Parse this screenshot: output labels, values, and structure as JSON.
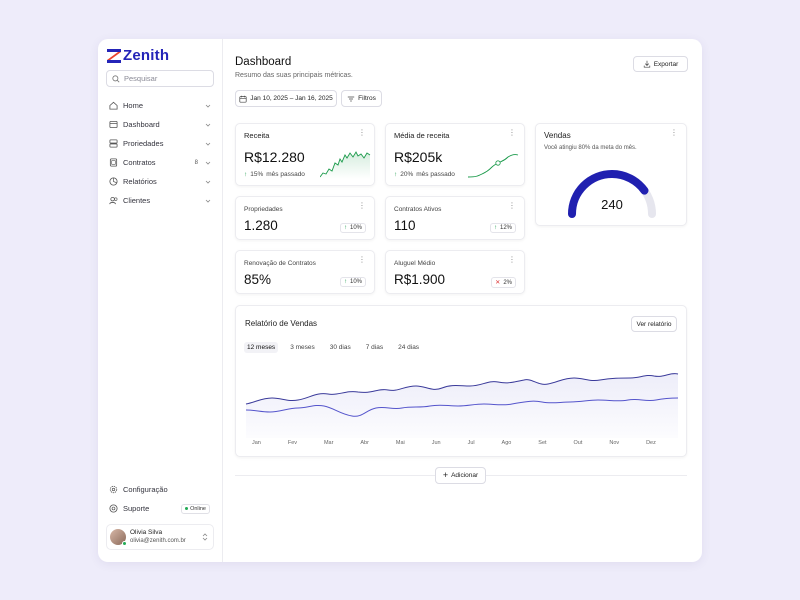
{
  "brand": {
    "name": "Zenith",
    "color": "#2424b8"
  },
  "search": {
    "placeholder": "Pesquisar"
  },
  "nav": [
    {
      "label": "Home",
      "icon": "home-icon",
      "count": ""
    },
    {
      "label": "Dashboard",
      "icon": "dashboard-icon",
      "count": ""
    },
    {
      "label": "Proriedades",
      "icon": "properties-icon",
      "count": ""
    },
    {
      "label": "Contratos",
      "icon": "contracts-icon",
      "count": "8"
    },
    {
      "label": "Relatórios",
      "icon": "reports-icon",
      "count": ""
    },
    {
      "label": "Clientes",
      "icon": "clients-icon",
      "count": ""
    }
  ],
  "bottom_nav": {
    "settings_label": "Configuração",
    "support_label": "Suporte",
    "online_label": "Online"
  },
  "user": {
    "name": "Olivia Silva",
    "email": "olivia@zenith.com.br"
  },
  "header": {
    "title": "Dashboard",
    "subtitle": "Resumo das suas principais métricas.",
    "export_label": "Exportar",
    "date_range": "Jan 10, 2025 – Jan 16, 2025",
    "filters_label": "Filtros"
  },
  "cards": {
    "receita": {
      "title": "Receita",
      "value": "R$12.280",
      "change": "15%",
      "period": "mês passado"
    },
    "media": {
      "title": "Média de receita",
      "value": "R$205k",
      "change": "20%",
      "period": "mês passado"
    },
    "vendas": {
      "title": "Vendas",
      "subtitle": "Você atingiu 80% da meta do mês.",
      "value": "240",
      "progress": 0.8,
      "color": "#2020b0"
    },
    "propriedades": {
      "title": "Propriedades",
      "value": "1.280",
      "change": "10%",
      "direction": "up"
    },
    "contratos": {
      "title": "Contratos Ativos",
      "value": "110",
      "change": "12%",
      "direction": "up"
    },
    "renovacao": {
      "title": "Renovação de Contratos",
      "value": "85%",
      "change": "10%",
      "direction": "up"
    },
    "aluguel": {
      "title": "Aluguel Médio",
      "value": "R$1.900",
      "change": "2%",
      "direction": "down"
    }
  },
  "report": {
    "title": "Relatório de Vendas",
    "view_label": "Ver relatório",
    "tabs": [
      "12 meses",
      "3 meses",
      "30 dias",
      "7 dias",
      "24 dias"
    ],
    "active_tab": 0,
    "months": [
      "Jan",
      "Fev",
      "Mar",
      "Abr",
      "Mai",
      "Jun",
      "Jul",
      "Ago",
      "Set",
      "Out",
      "Nov",
      "Dez"
    ]
  },
  "add_label": "Adicionar",
  "colors": {
    "up": "#1a9a4a",
    "down": "#d33333",
    "line_dark": "#3a3a9a",
    "line_light": "#5555cc"
  }
}
